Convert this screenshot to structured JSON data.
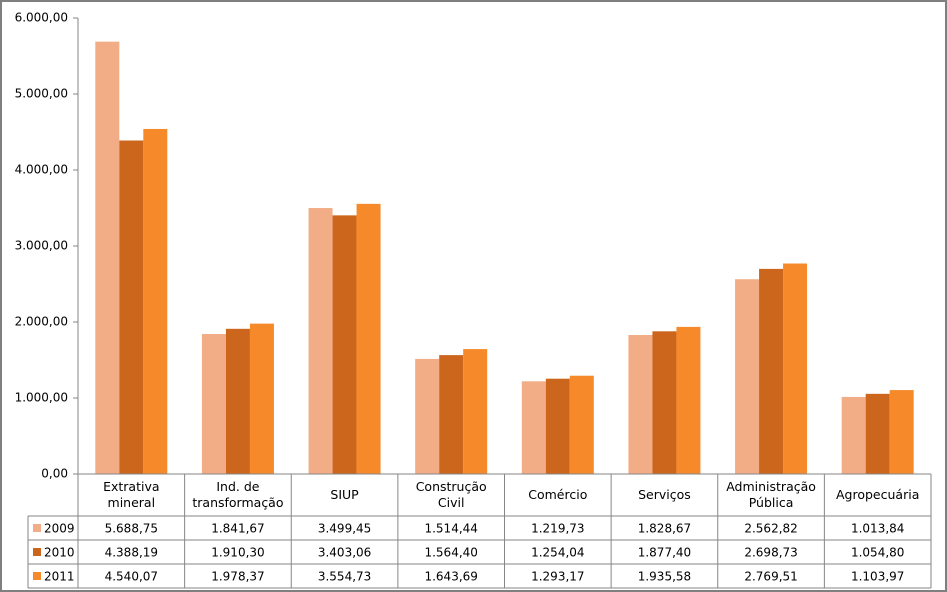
{
  "chart_data": {
    "type": "bar",
    "categories": [
      "Extrativa mineral",
      "Ind. de transformação",
      "SIUP",
      "Construção Civil",
      "Comércio",
      "Serviços",
      "Administração Pública",
      "Agropecuária"
    ],
    "series": [
      {
        "name": "2009",
        "color": "#f2ad86",
        "values": [
          5688.75,
          1841.67,
          3499.45,
          1514.44,
          1219.73,
          1828.67,
          2562.82,
          1013.84
        ],
        "value_labels": [
          "5.688,75",
          "1.841,67",
          "3.499,45",
          "1.514,44",
          "1.219,73",
          "1.828,67",
          "2.562,82",
          "1.013,84"
        ]
      },
      {
        "name": "2010",
        "color": "#cc661c",
        "values": [
          4388.19,
          1910.3,
          3403.06,
          1564.4,
          1254.04,
          1877.4,
          2698.73,
          1054.8
        ],
        "value_labels": [
          "4.388,19",
          "1.910,30",
          "3.403,06",
          "1.564,40",
          "1.254,04",
          "1.877,40",
          "2.698,73",
          "1.054,80"
        ]
      },
      {
        "name": "2011",
        "color": "#f6892a",
        "values": [
          4540.07,
          1978.37,
          3554.73,
          1643.69,
          1293.17,
          1935.58,
          2769.51,
          1103.97
        ],
        "value_labels": [
          "4.540,07",
          "1.978,37",
          "3.554,73",
          "1.643,69",
          "1.293,17",
          "1.935,58",
          "2.769,51",
          "1.103,97"
        ]
      }
    ],
    "ylim": [
      0,
      6000
    ],
    "yticks": [
      {
        "value": 0,
        "label": "0,00"
      },
      {
        "value": 1000,
        "label": "1.000,00"
      },
      {
        "value": 2000,
        "label": "2.000,00"
      },
      {
        "value": 3000,
        "label": "3.000,00"
      },
      {
        "value": 4000,
        "label": "4.000,00"
      },
      {
        "value": 5000,
        "label": "5.000,00"
      },
      {
        "value": 6000,
        "label": "6.000,00"
      }
    ]
  }
}
